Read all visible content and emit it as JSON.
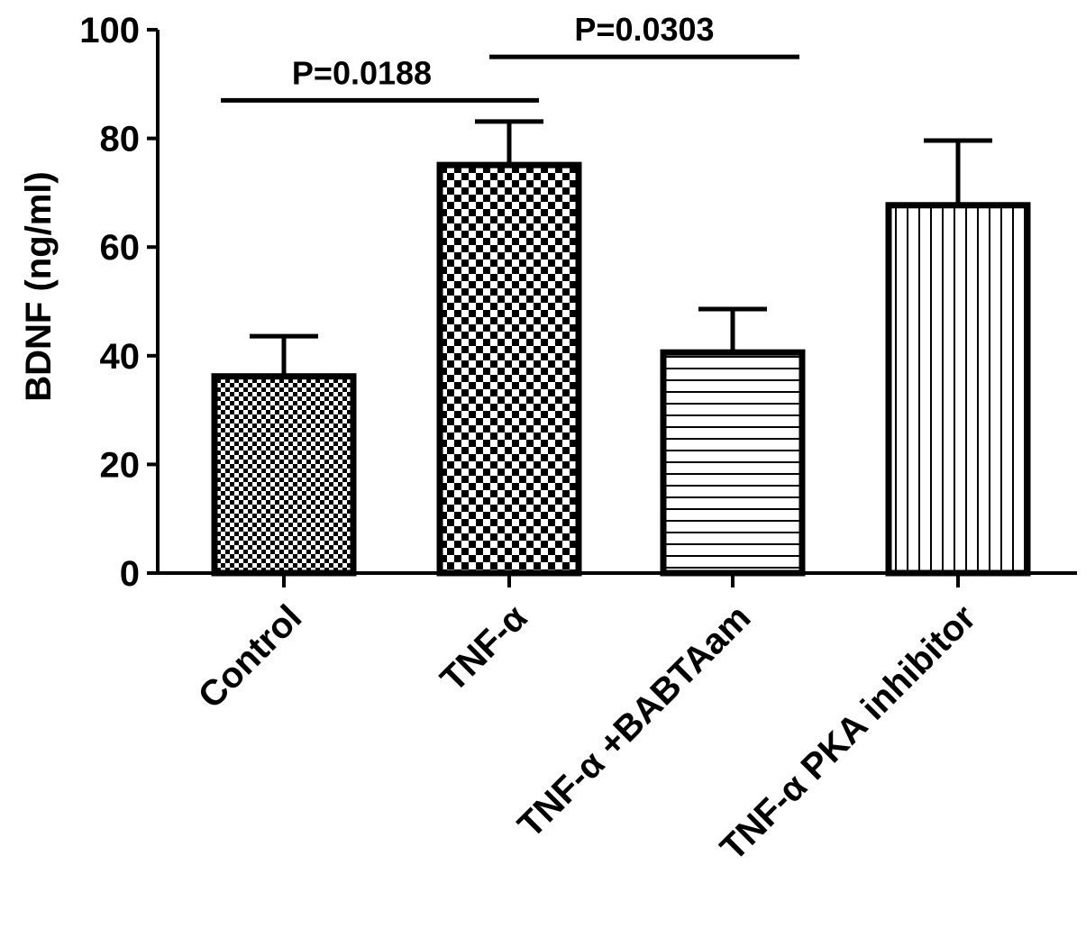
{
  "chart_data": {
    "type": "bar",
    "title": "",
    "xlabel": "",
    "ylabel": "BDNF (ng/ml)",
    "ylim": [
      0,
      100
    ],
    "yticks": [
      0,
      20,
      40,
      60,
      80,
      100
    ],
    "ytick_labels": [
      "0",
      "20",
      "40",
      "60",
      "80",
      "100"
    ],
    "categories": [
      "Control",
      "TNF-α",
      "TNF-α +BABTAam",
      "TNF-α PKA inhibitor"
    ],
    "values": [
      36.2,
      75.1,
      40.6,
      67.7
    ],
    "errors": [
      7.4,
      8.0,
      8.0,
      11.9
    ],
    "patterns": [
      "fine-checker",
      "coarse-checker",
      "horizontal-lines",
      "vertical-lines"
    ],
    "grid": false,
    "annotations": [
      {
        "text": "P=0.0188",
        "from": 0,
        "to": 1,
        "level": 87
      },
      {
        "text": "P=0.0303",
        "from": 1,
        "to": 2,
        "level": 95
      }
    ],
    "color": "#000000"
  }
}
